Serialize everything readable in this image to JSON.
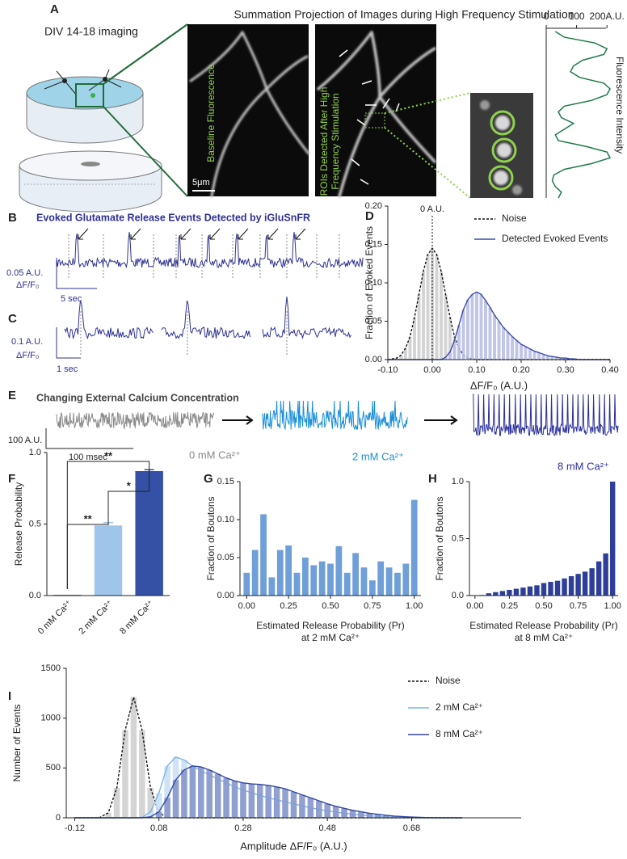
{
  "figure": {
    "panel_labels": [
      "A",
      "B",
      "C",
      "D",
      "E",
      "F",
      "G",
      "H",
      "I"
    ],
    "a": {
      "imaging": "DIV 14-18 imaging",
      "title": "Summation Projection of Images during High Frequency Stimulation",
      "baseline": "Baseline Fluorescence",
      "rois": [
        "ROIs Detected After High",
        "Frequency Stimulation"
      ],
      "scale": "5μm"
    },
    "b": {
      "title": "Evoked Glutamate Release Events Detected by iGluSnFR",
      "scale_y": "0.05 A.U.",
      "scale_unit": "ΔF/F₀",
      "scale_x": "5 sec"
    },
    "c": {
      "scale_y": "0.1 A.U.",
      "scale_unit": "ΔF/F₀",
      "scale_x": "1 sec"
    },
    "e": {
      "title": "Changing External Calcium Concentration",
      "scale_y": "100 A.U.",
      "scale_x": "100 msec",
      "conditions": [
        "0 mM Ca²⁺",
        "2 mM Ca²⁺",
        "8 mM Ca²⁺"
      ]
    }
  },
  "chart_data": [
    {
      "type": "line",
      "xlabel": "Fluorescence Intensity",
      "color": "#1f7a4a",
      "values": [
        30,
        60,
        160,
        200,
        190,
        120,
        90,
        80,
        110,
        190,
        210,
        200,
        150,
        60,
        40,
        50,
        90,
        60,
        30,
        40,
        130,
        200,
        210,
        150,
        60,
        25,
        20,
        30,
        50,
        40
      ],
      "xlim": [
        0,
        250
      ],
      "xticks": [
        0,
        100,
        {
          "value": 200,
          "label": "200A.U."
        }
      ]
    },
    {
      "type": "area",
      "xlabel": "ΔF/F₀ (A.U.)",
      "ylabel": "Fraction of Evoked Events",
      "legend": "upper right",
      "annotation": {
        "text": "0 A.U.",
        "x": 0
      },
      "x": [
        -0.1,
        -0.09,
        -0.08,
        -0.07,
        -0.06,
        -0.05,
        -0.04,
        -0.03,
        -0.02,
        -0.01,
        0,
        0.01,
        0.02,
        0.03,
        0.04,
        0.05,
        0.06,
        0.07,
        0.08,
        0.09,
        0.1,
        0.11,
        0.12,
        0.13,
        0.14,
        0.15,
        0.16,
        0.17,
        0.18,
        0.19,
        0.2,
        0.21,
        0.22,
        0.23,
        0.24,
        0.25,
        0.26,
        0.27,
        0.28,
        0.29,
        0.3,
        0.31,
        0.32,
        0.33,
        0.34,
        0.35,
        0.36,
        0.37,
        0.38,
        0.39,
        0.4
      ],
      "series": [
        {
          "name": "Noise",
          "color": "#111111",
          "fill": "#cfcfcf",
          "line_style": "dashed",
          "values": [
            0,
            0.001,
            0.002,
            0.006,
            0.015,
            0.03,
            0.055,
            0.085,
            0.115,
            0.137,
            0.145,
            0.137,
            0.115,
            0.085,
            0.055,
            0.03,
            0.015,
            0.006,
            0.002,
            0.001,
            0,
            0,
            0,
            0,
            0,
            0,
            0,
            0,
            0,
            0,
            0,
            0,
            0,
            0,
            0,
            0,
            0,
            0,
            0,
            0,
            0,
            0,
            0,
            0,
            0,
            0,
            0,
            0,
            0,
            0,
            0
          ]
        },
        {
          "name": "Detected Evoked Events",
          "color": "#3b4ba8",
          "fill": "#b9c0e6",
          "line_style": "solid",
          "values": [
            0,
            0,
            0,
            0,
            0,
            0,
            0,
            0,
            0,
            0,
            0,
            0,
            0,
            0.003,
            0.01,
            0.025,
            0.045,
            0.065,
            0.078,
            0.085,
            0.088,
            0.085,
            0.077,
            0.068,
            0.058,
            0.05,
            0.042,
            0.036,
            0.03,
            0.025,
            0.02,
            0.017,
            0.014,
            0.011,
            0.009,
            0.007,
            0.005,
            0.004,
            0.003,
            0.002,
            0.002,
            0.001,
            0.001,
            0,
            0,
            0,
            0,
            0,
            0,
            0,
            0
          ]
        }
      ],
      "xlim": [
        -0.1,
        0.4
      ],
      "xticks": [
        {
          "value": -0.1,
          "label": "-0.10"
        },
        {
          "value": 0,
          "label": "0.00"
        },
        {
          "value": 0.1,
          "label": "0.10"
        },
        {
          "value": 0.2,
          "label": "0.20"
        },
        {
          "value": 0.3,
          "label": "0.30"
        },
        {
          "value": 0.4,
          "label": "0.40"
        }
      ],
      "ylim": [
        0,
        0.2
      ],
      "yticks": [
        {
          "value": 0,
          "label": "0.00"
        },
        0.05,
        {
          "value": 0.1,
          "label": "0.10"
        },
        0.15,
        {
          "value": 0.2,
          "label": "0.20"
        }
      ]
    },
    {
      "type": "bar",
      "ylabel": "Release Probability",
      "categories": [
        "0 mM Ca²⁺",
        "2 mM Ca²⁺",
        "8 mM Ca²⁺"
      ],
      "values": [
        0,
        0.49,
        0.87
      ],
      "errors": [
        0,
        0.02,
        0.01
      ],
      "colors": [
        "#888888",
        "#9fc5ea",
        "#3451a6"
      ],
      "annotations": [
        "**",
        "**",
        "*"
      ],
      "ylim": [
        0,
        1
      ],
      "yticks": [
        {
          "value": 0,
          "label": "0.0"
        },
        0.5,
        {
          "value": 1,
          "label": "1.0"
        }
      ]
    },
    {
      "type": "bar",
      "ylabel": "Fraction of Boutons",
      "xlabel": [
        "Estimated Release Probability (Pr)",
        "at 2 mM Ca²⁺"
      ],
      "color": "#6f9fd8",
      "x": [
        0,
        0.05,
        0.1,
        0.15,
        0.2,
        0.25,
        0.3,
        0.35,
        0.4,
        0.45,
        0.5,
        0.55,
        0.6,
        0.65,
        0.7,
        0.75,
        0.8,
        0.85,
        0.9,
        0.95,
        1
      ],
      "values": [
        0.03,
        0.06,
        0.107,
        0.024,
        0.06,
        0.066,
        0.03,
        0.05,
        0.04,
        0.045,
        0.042,
        0.065,
        0.03,
        0.056,
        0.037,
        0.02,
        0.045,
        0.037,
        0.03,
        0.042,
        0.126
      ],
      "xlim": [
        -0.04,
        1.04
      ],
      "xticks": [
        {
          "value": 0,
          "label": "0.00"
        },
        0.25,
        {
          "value": 0.5,
          "label": "0.50"
        },
        0.75,
        {
          "value": 1,
          "label": "1.00"
        }
      ],
      "ylim": [
        0,
        0.15
      ],
      "yticks": [
        {
          "value": 0,
          "label": "0.00"
        },
        0.05,
        {
          "value": 0.1,
          "label": "0.10"
        },
        0.15
      ]
    },
    {
      "type": "bar",
      "ylabel": "Fraction of Boutons",
      "xlabel": [
        "Estimated Release Probability (Pr)",
        "at 8 mM Ca²⁺"
      ],
      "color": "#2d3f9a",
      "x": [
        0,
        0.05,
        0.1,
        0.15,
        0.2,
        0.25,
        0.3,
        0.35,
        0.4,
        0.45,
        0.5,
        0.55,
        0.6,
        0.65,
        0.7,
        0.75,
        0.8,
        0.85,
        0.9,
        0.95,
        1
      ],
      "values": [
        0,
        0.005,
        0.02,
        0.03,
        0.04,
        0.05,
        0.06,
        0.07,
        0.08,
        0.09,
        0.11,
        0.12,
        0.13,
        0.15,
        0.17,
        0.19,
        0.21,
        0.24,
        0.3,
        0.37,
        1
      ],
      "xlim": [
        -0.04,
        1.04
      ],
      "xticks": [
        {
          "value": 0,
          "label": "0.00"
        },
        0.25,
        {
          "value": 0.5,
          "label": "0.50"
        },
        0.75,
        {
          "value": 1,
          "label": "1.00"
        }
      ],
      "ylim": [
        0,
        1
      ],
      "yticks": [
        {
          "value": 0,
          "label": "0.0"
        },
        0.5,
        {
          "value": 1,
          "label": "1.0"
        }
      ]
    },
    {
      "type": "area",
      "xlabel": "Amplitude ΔF/F₀ (A.U.)",
      "ylabel": "Number of Events",
      "legend": "upper right",
      "x": [
        -0.12,
        -0.1,
        -0.08,
        -0.06,
        -0.04,
        -0.02,
        0,
        0.02,
        0.04,
        0.06,
        0.08,
        0.1,
        0.12,
        0.14,
        0.16,
        0.18,
        0.2,
        0.22,
        0.24,
        0.26,
        0.28,
        0.3,
        0.32,
        0.34,
        0.36,
        0.38,
        0.4,
        0.42,
        0.44,
        0.46,
        0.48,
        0.5,
        0.52,
        0.54,
        0.56,
        0.58,
        0.6,
        0.62,
        0.64,
        0.66,
        0.68,
        0.7,
        0.72,
        0.74,
        0.76,
        0.78,
        0.8
      ],
      "series": [
        {
          "name": "Noise",
          "color": "#111111",
          "fill": "#cfcfcf",
          "line_style": "dashed",
          "values": [
            0,
            0,
            0,
            4,
            50,
            300,
            880,
            1210,
            880,
            300,
            50,
            4,
            0,
            0,
            0,
            0,
            0,
            0,
            0,
            0,
            0,
            0,
            0,
            0,
            0,
            0,
            0,
            0,
            0,
            0,
            0,
            0,
            0,
            0,
            0,
            0,
            0,
            0,
            0,
            0,
            0,
            0,
            0,
            0,
            0,
            0,
            0
          ]
        },
        {
          "name": "2 mM Ca²⁺",
          "color": "#7fb3e3",
          "fill": "#c9e0f5",
          "line_style": "solid",
          "values": [
            0,
            0,
            0,
            0,
            0,
            0,
            0,
            0,
            5,
            60,
            250,
            520,
            610,
            580,
            520,
            470,
            430,
            390,
            350,
            310,
            280,
            250,
            225,
            200,
            180,
            160,
            140,
            120,
            100,
            85,
            70,
            58,
            46,
            36,
            28,
            20,
            14,
            10,
            6,
            4,
            2,
            0,
            0,
            0,
            0,
            0,
            0
          ]
        },
        {
          "name": "8 mM Ca²⁺",
          "color": "#33479f",
          "fill": "#8797cc",
          "line_style": "solid",
          "values": [
            0,
            0,
            0,
            0,
            0,
            0,
            0,
            0,
            0,
            10,
            60,
            200,
            380,
            480,
            520,
            510,
            480,
            440,
            400,
            370,
            350,
            340,
            335,
            325,
            310,
            290,
            260,
            230,
            200,
            170,
            140,
            115,
            95,
            75,
            60,
            45,
            35,
            25,
            17,
            11,
            7,
            4,
            2,
            0,
            0,
            0,
            0
          ]
        }
      ],
      "xlim": [
        -0.14,
        0.94
      ],
      "xticks": [
        -0.12,
        0.08,
        0.28,
        0.48,
        0.68
      ],
      "ylim": [
        0,
        1500
      ],
      "yticks": [
        0,
        500,
        1000,
        1500
      ]
    }
  ]
}
